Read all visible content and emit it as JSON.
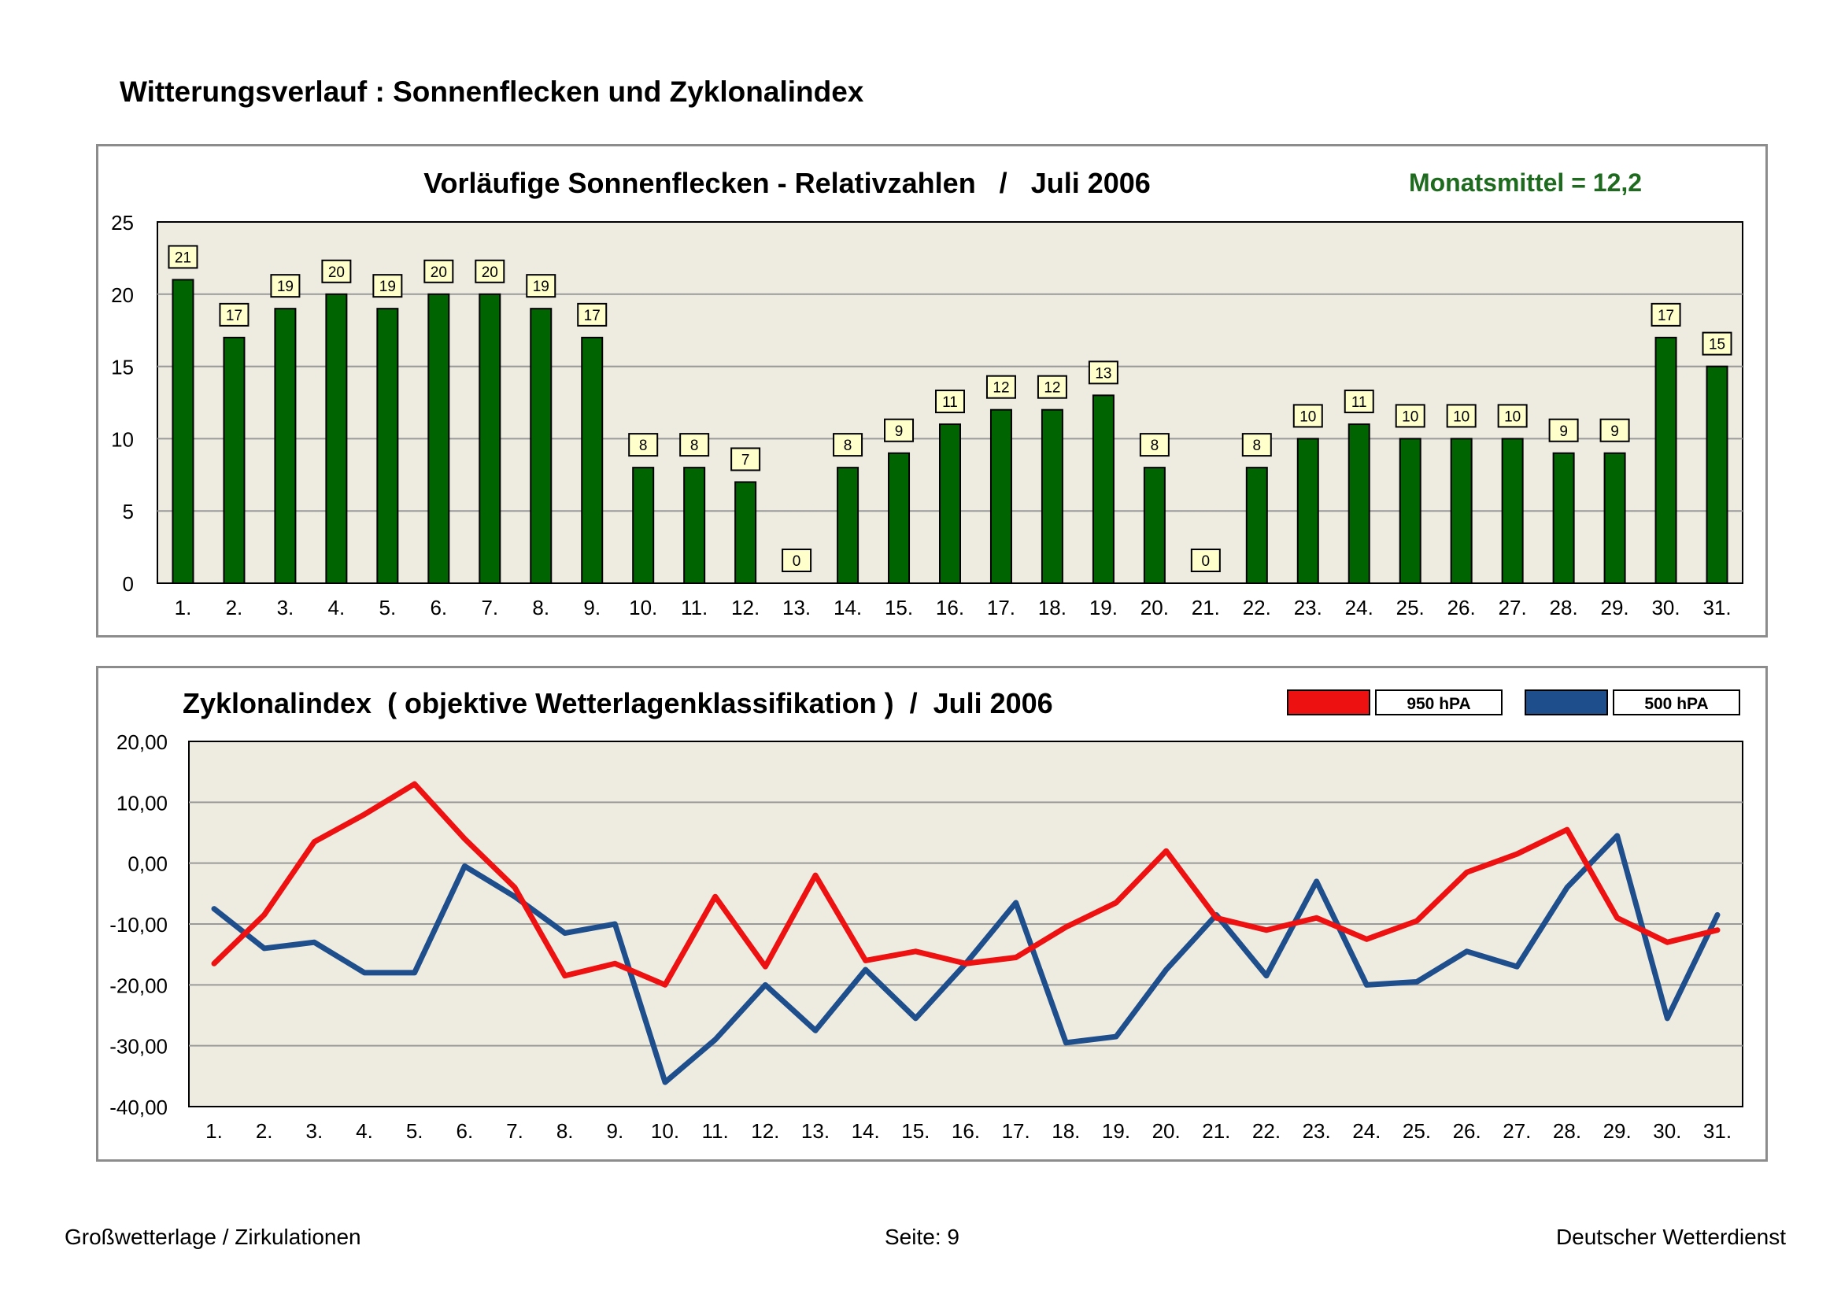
{
  "page": {
    "title": "Witterungsverlauf : Sonnenflecken und Zyklonalindex"
  },
  "footer": {
    "left": "Großwetterlage / Zirkulationen",
    "center": "Seite: 9",
    "right": "Deutscher Wetterdienst"
  },
  "colors": {
    "plot_background": "#eeece1",
    "bar": "#006400",
    "mean_text": "#1e6a1e",
    "series_950": "#ee1111",
    "series_500": "#1f4e8c",
    "gridline": "#9a9a9a",
    "label_box": "#ffffcc"
  },
  "chart_data": [
    {
      "type": "bar",
      "title": "Vorläufige Sonnenflecken - Relativzahlen   /   Juli 2006",
      "annotation": "Monatsmittel = 12,2",
      "categories": [
        "1.",
        "2.",
        "3.",
        "4.",
        "5.",
        "6.",
        "7.",
        "8.",
        "9.",
        "10.",
        "11.",
        "12.",
        "13.",
        "14.",
        "15.",
        "16.",
        "17.",
        "18.",
        "19.",
        "20.",
        "21.",
        "22.",
        "23.",
        "24.",
        "25.",
        "26.",
        "27.",
        "28.",
        "29.",
        "30.",
        "31."
      ],
      "values": [
        21,
        17,
        19,
        20,
        19,
        20,
        20,
        19,
        17,
        8,
        8,
        7,
        0,
        8,
        9,
        11,
        12,
        12,
        13,
        8,
        0,
        8,
        10,
        11,
        10,
        10,
        10,
        9,
        9,
        17,
        15
      ],
      "ylim": [
        0,
        25
      ],
      "yticks": [
        "0",
        "5",
        "10",
        "15",
        "20",
        "25"
      ],
      "grid": true,
      "data_labels": true,
      "xlabel": "",
      "ylabel": ""
    },
    {
      "type": "line",
      "title": "Zyklonalindex  ( objektive Wetterlagenklassifikation )  /  Juli 2006",
      "categories": [
        "1.",
        "2.",
        "3.",
        "4.",
        "5.",
        "6.",
        "7.",
        "8.",
        "9.",
        "10.",
        "11.",
        "12.",
        "13.",
        "14.",
        "15.",
        "16.",
        "17.",
        "18.",
        "19.",
        "20.",
        "21.",
        "22.",
        "23.",
        "24.",
        "25.",
        "26.",
        "27.",
        "28.",
        "29.",
        "30.",
        "31."
      ],
      "series": [
        {
          "name": "950 hPA",
          "values": [
            -16.5,
            -8.5,
            3.5,
            8.0,
            13.0,
            4.0,
            -4.0,
            -18.5,
            -16.5,
            -20.0,
            -5.5,
            -17.0,
            -2.0,
            -16.0,
            -14.5,
            -16.5,
            -15.5,
            -10.5,
            -6.5,
            2.0,
            -9.0,
            -11.0,
            -9.0,
            -12.5,
            -9.5,
            -1.5,
            1.5,
            5.5,
            -9.0,
            -13.0,
            -11.0
          ]
        },
        {
          "name": "500 hPA",
          "values": [
            -7.5,
            -14.0,
            -13.0,
            -18.0,
            -18.0,
            -0.5,
            -5.5,
            -11.5,
            -10.0,
            -36.0,
            -29.0,
            -20.0,
            -27.5,
            -17.5,
            -25.5,
            -16.5,
            -6.5,
            -29.5,
            -28.5,
            -17.5,
            -8.5,
            -18.5,
            -3.0,
            -20.0,
            -19.5,
            -14.5,
            -17.0,
            -4.0,
            4.5,
            -25.5,
            -8.5
          ]
        }
      ],
      "ylim": [
        -40,
        20
      ],
      "yticks": [
        "-40,00",
        "-30,00",
        "-20,00",
        "-10,00",
        "0,00",
        "10,00",
        "20,00"
      ],
      "legend": "top-right",
      "grid": true,
      "xlabel": "",
      "ylabel": ""
    }
  ]
}
